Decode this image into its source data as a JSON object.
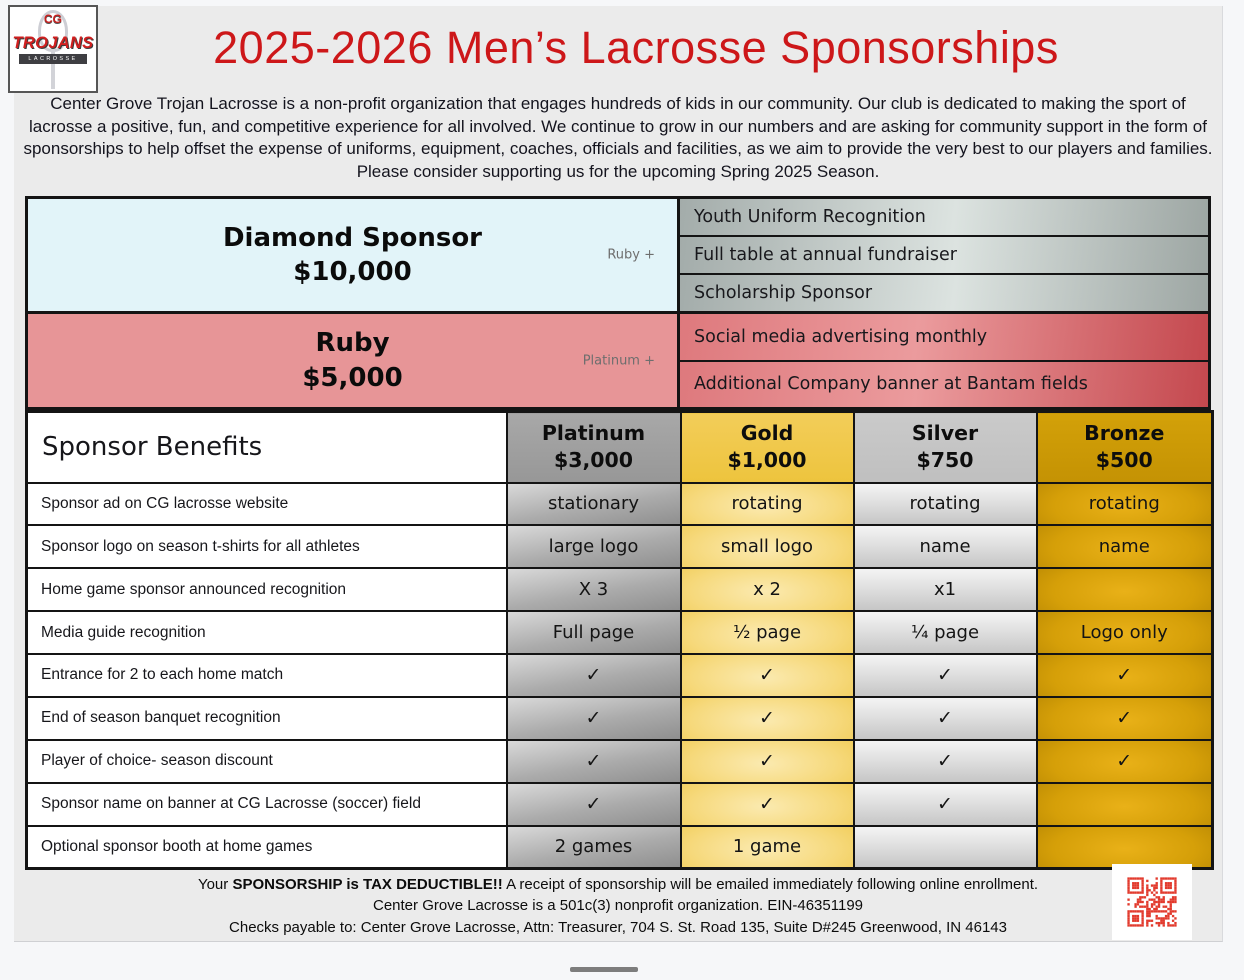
{
  "header": {
    "title": "2025-2026 Men’s Lacrosse Sponsorships",
    "title_color": "#cd1719"
  },
  "logo": {
    "monogram": "CG",
    "team": "TROJANS",
    "sport": "LACROSSE"
  },
  "intro": {
    "text": "Center Grove Trojan Lacrosse is a non-profit organization that engages hundreds of kids in our community. Our club is dedicated to making the sport of lacrosse a positive, fun, and competitive experience for all involved. We continue to grow in our numbers and are asking for community support in the form of sponsorships to help offset the expense of uniforms, equipment, coaches, officials and facilities, as we aim to provide the very best to our players and families. Please consider supporting us for the upcoming Spring 2025 Season."
  },
  "premium_tiers": [
    {
      "name": "Diamond Sponsor",
      "price": "$10,000",
      "includes": "Ruby +",
      "color": "#e2f4f9",
      "benefits": [
        "Youth Uniform Recognition",
        "Full table at annual fundraiser",
        "Scholarship Sponsor"
      ]
    },
    {
      "name": "Ruby",
      "price": "$5,000",
      "includes": "Platinum +",
      "color": "#e79597",
      "benefits": [
        "Social media advertising monthly",
        "Additional Company banner at Bantam fields"
      ]
    }
  ],
  "table": {
    "benefits_header": "Sponsor Benefits",
    "tiers": [
      {
        "name": "Platinum",
        "price": "$3,000",
        "color": "#9c9c9c"
      },
      {
        "name": "Gold",
        "price": "$1,000",
        "color": "#f1c94e"
      },
      {
        "name": "Silver",
        "price": "$750",
        "color": "#c6c6c6"
      },
      {
        "name": "Bronze",
        "price": "$500",
        "color": "#cd9a06"
      }
    ],
    "rows": [
      {
        "label": "Sponsor ad on CG lacrosse website",
        "values": [
          "stationary",
          "rotating",
          "rotating",
          "rotating"
        ]
      },
      {
        "label": "Sponsor logo on season t-shirts for all athletes",
        "values": [
          "large logo",
          "small logo",
          "name",
          "name"
        ]
      },
      {
        "label": "Home game sponsor announced recognition",
        "values": [
          "X 3",
          "x 2",
          "x1",
          ""
        ]
      },
      {
        "label": "Media guide recognition",
        "values": [
          "Full page",
          "½ page",
          "¼ page",
          "Logo only"
        ]
      },
      {
        "label": "Entrance for 2 to each home match",
        "values": [
          "✓",
          "✓",
          "✓",
          "✓"
        ]
      },
      {
        "label": "End of season banquet recognition",
        "values": [
          "✓",
          "✓",
          "✓",
          "✓"
        ]
      },
      {
        "label": "Player of choice- season discount",
        "values": [
          "✓",
          "✓",
          "✓",
          "✓"
        ]
      },
      {
        "label": "Sponsor name on banner at CG Lacrosse (soccer) field",
        "values": [
          "✓",
          "✓",
          "✓",
          ""
        ]
      },
      {
        "label": "Optional sponsor booth at home games",
        "values": [
          "2 games",
          "1 game",
          "",
          ""
        ]
      }
    ]
  },
  "footer": {
    "line1_pre": "Your ",
    "line1_bold": "SPONSORSHIP is TAX DEDUCTIBLE!!",
    "line1_post": " A receipt of sponsorship will be emailed immediately following online enrollment.",
    "line2": "Center Grove Lacrosse is a 501c(3) nonprofit organization. EIN-46351199",
    "line3": "Checks payable to: Center Grove Lacrosse, Attn: Treasurer, 704 S. St. Road 135, Suite D#245 Greenwood, IN 46143",
    "qr_color": "#e23a2d"
  }
}
